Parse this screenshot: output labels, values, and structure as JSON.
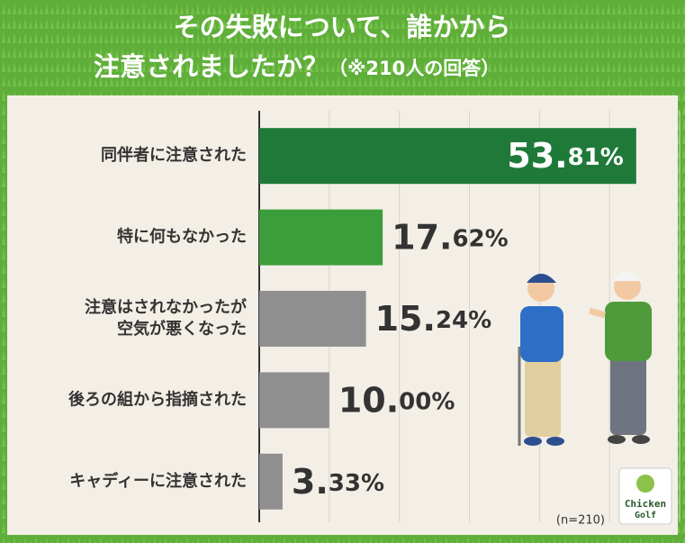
{
  "chart_data": {
    "type": "hbar",
    "title": [
      "その失敗について、誰かから",
      "注意されましたか？"
    ],
    "subtitle": "（※210人の回答）",
    "categories": [
      "同伴者に注意された",
      "特に何もなかった",
      "注意はされなかったが\n空気が悪くなった",
      "後ろの組から指摘された",
      "キャディーに注意された"
    ],
    "values": [
      53.81,
      17.62,
      15.24,
      10.0,
      3.33
    ],
    "value_labels": [
      "53.81%",
      "17.62%",
      "15.24%",
      "10.00%",
      "3.33%"
    ],
    "colors": [
      "#1f7a3a",
      "#3c9e3a",
      "#8f8f8f",
      "#8f8f8f",
      "#8f8f8f"
    ],
    "xlim": [
      0,
      60
    ],
    "xticks": [
      0,
      10,
      20,
      30,
      40,
      50,
      60
    ],
    "grid": true,
    "note": "(n=210)"
  },
  "logo": {
    "line1": "Chicken",
    "line2": "Golf"
  }
}
